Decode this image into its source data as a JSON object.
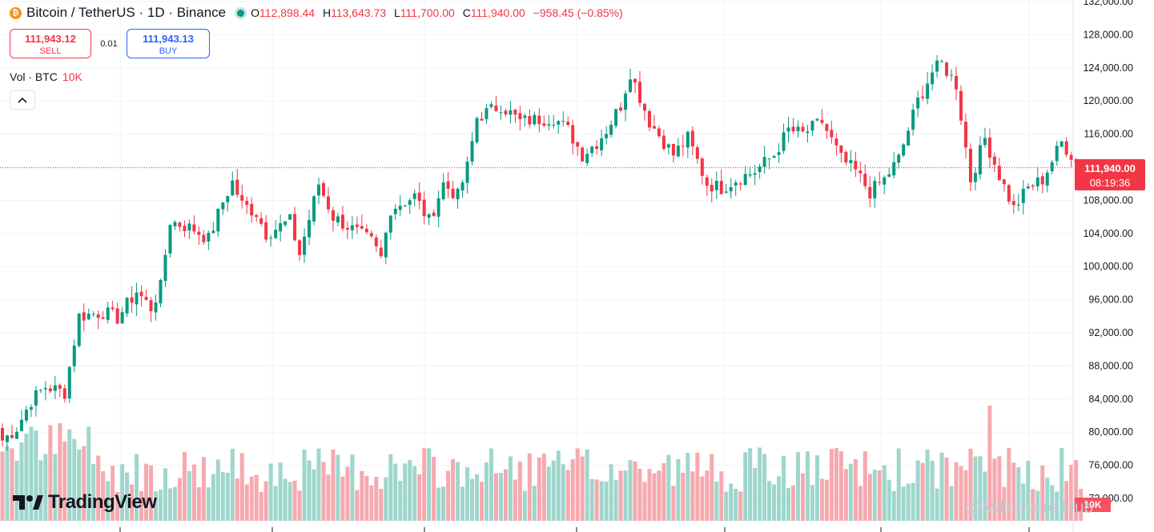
{
  "header": {
    "symbol": "Bitcoin / TetherUS · 1D · Binance",
    "open_label": "O",
    "open": "112,898.44",
    "high_label": "H",
    "high": "113,643.73",
    "low_label": "L",
    "low": "111,700.00",
    "close_label": "C",
    "close": "111,940.00",
    "change": "−958.45 (−0.85%)"
  },
  "trade": {
    "sell_price": "111,943.12",
    "sell_label": "SELL",
    "spread": "0.01",
    "buy_price": "111,943.13",
    "buy_label": "BUY"
  },
  "volume_legend": {
    "label": "Vol · BTC",
    "value": "10K"
  },
  "last_price": {
    "price": "111,940.00",
    "countdown": "08:19:36"
  },
  "volume_tag": "10K",
  "brand": "TradingView",
  "watermark": "@Millionaire Hub",
  "colors": {
    "up": "#089981",
    "down": "#f23645",
    "up_vol": "#9fd6cc",
    "down_vol": "#f6a9af",
    "grid": "#f0f3fa"
  },
  "chart_data": {
    "type": "candlestick",
    "title": "Bitcoin / TetherUS · 1D · Binance",
    "ylim": [
      70000,
      132000
    ],
    "y_ticks": [
      132000,
      128000,
      124000,
      120000,
      116000,
      112000,
      108000,
      104000,
      100000,
      96000,
      92000,
      88000,
      84000,
      80000,
      76000,
      72000
    ],
    "y_tick_labels": [
      "132,000.00",
      "128,000.00",
      "124,000.00",
      "120,000.00",
      "116,000.00",
      "",
      "108,000.00",
      "104,000.00",
      "100,000.00",
      "96,000.00",
      "92,000.00",
      "88,000.00",
      "84,000.00",
      "80,000.00",
      "76,000.00",
      "72,000.00"
    ],
    "last_price": 111940,
    "waypoints": [
      [
        0,
        79000
      ],
      [
        3,
        80500
      ],
      [
        6,
        83800
      ],
      [
        9,
        85500
      ],
      [
        13,
        84800
      ],
      [
        16,
        94000
      ],
      [
        21,
        94500
      ],
      [
        24,
        93800
      ],
      [
        28,
        97000
      ],
      [
        31,
        95000
      ],
      [
        33,
        97500
      ],
      [
        35,
        105500
      ],
      [
        40,
        104500
      ],
      [
        43,
        103300
      ],
      [
        46,
        107800
      ],
      [
        48,
        110200
      ],
      [
        50,
        107500
      ],
      [
        53,
        106500
      ],
      [
        55,
        104000
      ],
      [
        60,
        105500
      ],
      [
        62,
        101500
      ],
      [
        66,
        110000
      ],
      [
        69,
        106000
      ],
      [
        73,
        104500
      ],
      [
        77,
        103000
      ],
      [
        79,
        101000
      ],
      [
        81,
        107000
      ],
      [
        86,
        108500
      ],
      [
        89,
        105500
      ],
      [
        92,
        110000
      ],
      [
        95,
        108500
      ],
      [
        97,
        112000
      ],
      [
        99,
        118000
      ],
      [
        104,
        119500
      ],
      [
        108,
        117500
      ],
      [
        115,
        118000
      ],
      [
        118,
        116500
      ],
      [
        121,
        113500
      ],
      [
        124,
        115000
      ],
      [
        126,
        116500
      ],
      [
        129,
        119500
      ],
      [
        131,
        123500
      ],
      [
        135,
        117500
      ],
      [
        140,
        113500
      ],
      [
        143,
        115500
      ],
      [
        147,
        110000
      ],
      [
        150,
        109500
      ],
      [
        153,
        110500
      ],
      [
        157,
        111500
      ],
      [
        161,
        113500
      ],
      [
        164,
        116500
      ],
      [
        167,
        116000
      ],
      [
        171,
        117500
      ],
      [
        175,
        113000
      ],
      [
        178,
        111500
      ],
      [
        181,
        109000
      ],
      [
        184,
        110500
      ],
      [
        187,
        113000
      ],
      [
        191,
        120000
      ],
      [
        194,
        123500
      ],
      [
        196,
        124500
      ],
      [
        199,
        122000
      ],
      [
        202,
        110500
      ],
      [
        205,
        115500
      ],
      [
        208,
        111000
      ],
      [
        211,
        107000
      ],
      [
        214,
        109500
      ],
      [
        217,
        110500
      ],
      [
        221,
        115000
      ],
      [
        223,
        113500
      ],
      [
        225,
        111900
      ]
    ],
    "volume_range": [
      0,
      40000
    ],
    "volume_last": 10000
  }
}
